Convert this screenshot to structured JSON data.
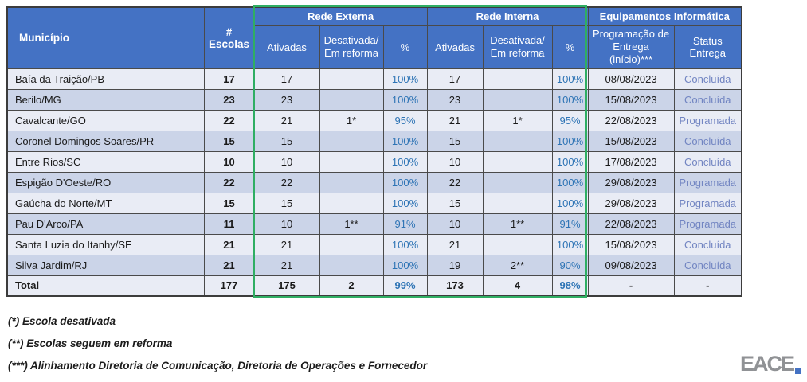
{
  "table": {
    "groups": [
      "Rede Externa",
      "Rede Interna",
      "Equipamentos Informática"
    ],
    "headers": {
      "municipio": "Município",
      "escolas": "# Escolas",
      "ativadas": "Ativadas",
      "desativada": "Desativada/\nEm reforma",
      "pct": "%",
      "programacao": "Programação de Entrega (início)***",
      "status": "Status Entrega"
    },
    "rows": [
      {
        "municipio": "Baía da Traição/PB",
        "escolas": "17",
        "ext_ativadas": "17",
        "ext_desativada": "",
        "ext_pct": "100%",
        "int_ativadas": "17",
        "int_desativada": "",
        "int_pct": "100%",
        "programacao": "08/08/2023",
        "status": "Concluída"
      },
      {
        "municipio": "Berilo/MG",
        "escolas": "23",
        "ext_ativadas": "23",
        "ext_desativada": "",
        "ext_pct": "100%",
        "int_ativadas": "23",
        "int_desativada": "",
        "int_pct": "100%",
        "programacao": "15/08/2023",
        "status": "Concluída"
      },
      {
        "municipio": "Cavalcante/GO",
        "escolas": "22",
        "ext_ativadas": "21",
        "ext_desativada": "1*",
        "ext_pct": "95%",
        "int_ativadas": "21",
        "int_desativada": "1*",
        "int_pct": "95%",
        "programacao": "22/08/2023",
        "status": "Programada"
      },
      {
        "municipio": "Coronel Domingos Soares/PR",
        "escolas": "15",
        "ext_ativadas": "15",
        "ext_desativada": "",
        "ext_pct": "100%",
        "int_ativadas": "15",
        "int_desativada": "",
        "int_pct": "100%",
        "programacao": "15/08/2023",
        "status": "Concluída"
      },
      {
        "municipio": "Entre Rios/SC",
        "escolas": "10",
        "ext_ativadas": "10",
        "ext_desativada": "",
        "ext_pct": "100%",
        "int_ativadas": "10",
        "int_desativada": "",
        "int_pct": "100%",
        "programacao": "17/08/2023",
        "status": "Concluída"
      },
      {
        "municipio": "Espigão D'Oeste/RO",
        "escolas": "22",
        "ext_ativadas": "22",
        "ext_desativada": "",
        "ext_pct": "100%",
        "int_ativadas": "22",
        "int_desativada": "",
        "int_pct": "100%",
        "programacao": "29/08/2023",
        "status": "Programada"
      },
      {
        "municipio": "Gaúcha do Norte/MT",
        "escolas": "15",
        "ext_ativadas": "15",
        "ext_desativada": "",
        "ext_pct": "100%",
        "int_ativadas": "15",
        "int_desativada": "",
        "int_pct": "100%",
        "programacao": "29/08/2023",
        "status": "Programada"
      },
      {
        "municipio": "Pau D'Arco/PA",
        "escolas": "11",
        "ext_ativadas": "10",
        "ext_desativada": "1**",
        "ext_pct": "91%",
        "int_ativadas": "10",
        "int_desativada": "1**",
        "int_pct": "91%",
        "programacao": "22/08/2023",
        "status": "Programada"
      },
      {
        "municipio": "Santa Luzia do Itanhy/SE",
        "escolas": "21",
        "ext_ativadas": "21",
        "ext_desativada": "",
        "ext_pct": "100%",
        "int_ativadas": "21",
        "int_desativada": "",
        "int_pct": "100%",
        "programacao": "15/08/2023",
        "status": "Concluída"
      },
      {
        "municipio": "Silva Jardim/RJ",
        "escolas": "21",
        "ext_ativadas": "21",
        "ext_desativada": "",
        "ext_pct": "100%",
        "int_ativadas": "19",
        "int_desativada": "2**",
        "int_pct": "90%",
        "programacao": "09/08/2023",
        "status": "Concluída"
      },
      {
        "municipio": "Total",
        "escolas": "177",
        "ext_ativadas": "175",
        "ext_desativada": "2",
        "ext_pct": "99%",
        "int_ativadas": "173",
        "int_desativada": "4",
        "int_pct": "98%",
        "programacao": "-",
        "status": "-",
        "total": true
      }
    ]
  },
  "footnotes": [
    "(*) Escola desativada",
    "(**) Escolas seguem em reforma",
    "(***) Alinhamento Diretoria de Comunicação, Diretoria de Operações e Fornecedor"
  ],
  "logo": {
    "text": "EACE"
  },
  "colors": {
    "header_blue": "#4472C4",
    "row_light": "#E9ECF5",
    "row_dark": "#CBD4E8",
    "highlight_green": "#2FAE63",
    "pct_blue": "#2E74B5",
    "status_blue": "#7285C2",
    "logo_gray": "#909295"
  }
}
